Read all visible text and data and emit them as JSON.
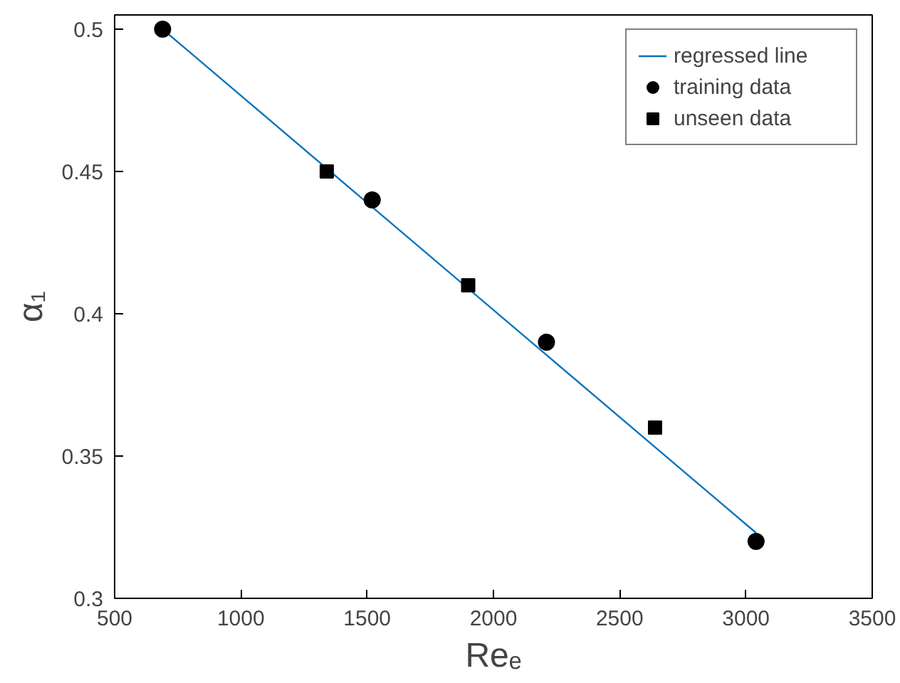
{
  "chart_data": {
    "type": "scatter",
    "xlabel": "Reₑ",
    "ylabel": "α₁",
    "xlim": [
      500,
      3500
    ],
    "xticks": [
      500,
      1000,
      1500,
      2000,
      2500,
      3000,
      3500
    ],
    "ylim": [
      0.3,
      0.505
    ],
    "yticks": [
      0.3,
      0.35,
      0.4,
      0.45,
      0.5
    ],
    "grid": false,
    "legend": "top right",
    "series": [
      {
        "name": "regressed line",
        "type": "line",
        "color": "#0072bd",
        "x": [
          690,
          3040
        ],
        "values": [
          0.5,
          0.323
        ],
        "marker": "none",
        "line_style": "solid"
      },
      {
        "name": "training data",
        "color": "#000000",
        "x": [
          690,
          1520,
          2210,
          3040
        ],
        "values": [
          0.5,
          0.44,
          0.39,
          0.32
        ],
        "marker": "circle"
      },
      {
        "name": "unseen data",
        "color": "#000000",
        "x": [
          1340,
          1900,
          2640
        ],
        "values": [
          0.45,
          0.41,
          0.36
        ],
        "marker": "square"
      }
    ]
  }
}
